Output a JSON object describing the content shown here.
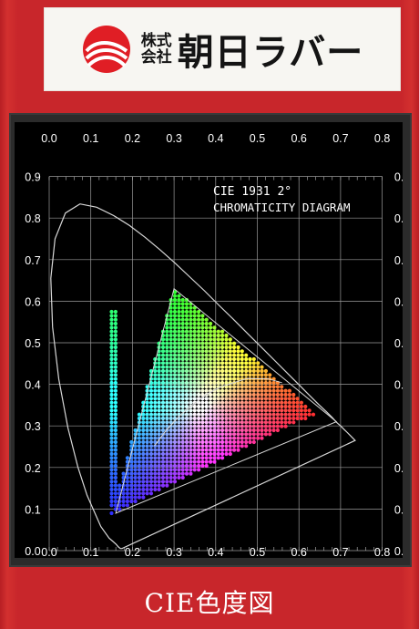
{
  "logo": {
    "small_top": "株式",
    "small_bottom": "会社",
    "company": "朝日ラバー",
    "accent": "#e01e25"
  },
  "diagram": {
    "title_line1": "CIE 1931 2°",
    "title_line2": "CHROMATICITY DIAGRAM",
    "x_ticks": [
      "0.0",
      "0.1",
      "0.2",
      "0.3",
      "0.4",
      "0.5",
      "0.6",
      "0.7",
      "0.8"
    ],
    "y_ticks": [
      "0.0",
      "0.1",
      "0.2",
      "0.3",
      "0.4",
      "0.5",
      "0.6",
      "0.7",
      "0.8",
      "0.9"
    ],
    "gamut_triangle": [
      [
        0.16,
        0.09
      ],
      [
        0.69,
        0.31
      ],
      [
        0.3,
        0.63
      ]
    ]
  },
  "caption": "CIE色度図"
}
